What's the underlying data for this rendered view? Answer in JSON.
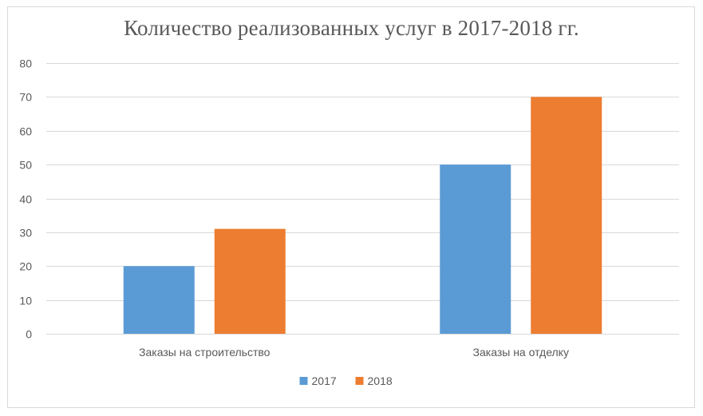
{
  "chart_data": {
    "type": "bar",
    "title": "Количество реализованных услуг в 2017-2018 гг.",
    "categories": [
      "Заказы на строительство",
      "Заказы на отделку"
    ],
    "series": [
      {
        "name": "2017",
        "values": [
          20,
          50
        ],
        "color": "#5b9bd5"
      },
      {
        "name": "2018",
        "values": [
          31,
          70
        ],
        "color": "#ed7d31"
      }
    ],
    "ylim": [
      0,
      80
    ],
    "yticks": [
      "0",
      "10",
      "20",
      "30",
      "40",
      "50",
      "60",
      "70",
      "80"
    ],
    "grid": true,
    "legend_position": "bottom",
    "xlabel": "",
    "ylabel": ""
  },
  "colors": {
    "grid": "#d9d9d9",
    "text": "#595959"
  }
}
